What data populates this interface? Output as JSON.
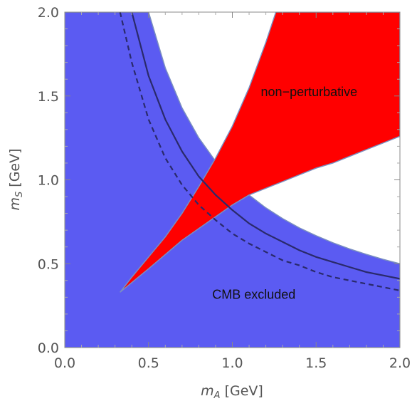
{
  "chart_data": {
    "type": "area",
    "xlabel": {
      "symbol": "m",
      "subscript": "A",
      "unit": " [GeV]"
    },
    "ylabel": {
      "symbol": "m",
      "subscript": "S",
      "unit": " [GeV]"
    },
    "xlim": [
      0,
      2
    ],
    "ylim": [
      0,
      2
    ],
    "xticks": [
      "0.0",
      "0.5",
      "1.0",
      "1.5",
      "2.0"
    ],
    "yticks": [
      "0.0",
      "0.5",
      "1.0",
      "1.5",
      "2.0"
    ],
    "grid": false,
    "regions": [
      {
        "label": "CMB excluded",
        "color": "#5b5bf2",
        "description_points": "band between x=0 and y=1/x (clipped), region mA*mS<=1 excluding y>2/x... outline",
        "boundary": [
          [
            0,
            0
          ],
          [
            0,
            2
          ],
          [
            0.5,
            2
          ],
          [
            0.6,
            1.667
          ],
          [
            0.7,
            1.429
          ],
          [
            0.8,
            1.25
          ],
          [
            0.9,
            1.111
          ],
          [
            1.0,
            1.0
          ],
          [
            1.1,
            0.909
          ],
          [
            1.2,
            0.833
          ],
          [
            1.3,
            0.769
          ],
          [
            1.4,
            0.714
          ],
          [
            1.5,
            0.667
          ],
          [
            1.6,
            0.625
          ],
          [
            1.7,
            0.588
          ],
          [
            1.8,
            0.556
          ],
          [
            1.9,
            0.526
          ],
          [
            2.0,
            0.5
          ],
          [
            2.0,
            0
          ],
          [
            0,
            0
          ]
        ]
      },
      {
        "label": "non−perturbative",
        "color": "#ff0000",
        "boundary": [
          [
            0.33,
            0.33
          ],
          [
            0.5,
            0.47
          ],
          [
            0.7,
            0.64
          ],
          [
            0.9,
            0.78
          ],
          [
            1.0,
            0.85
          ],
          [
            1.1,
            0.91
          ],
          [
            1.2,
            0.95
          ],
          [
            1.3,
            0.99
          ],
          [
            1.4,
            1.03
          ],
          [
            1.5,
            1.07
          ],
          [
            1.6,
            1.1
          ],
          [
            1.7,
            1.14
          ],
          [
            1.8,
            1.18
          ],
          [
            1.9,
            1.22
          ],
          [
            2.0,
            1.26
          ],
          [
            2.0,
            2.0
          ],
          [
            1.26,
            2.0
          ],
          [
            1.2,
            1.82
          ],
          [
            1.1,
            1.55
          ],
          [
            1.0,
            1.32
          ],
          [
            0.9,
            1.13
          ],
          [
            0.8,
            0.96
          ],
          [
            0.7,
            0.8
          ],
          [
            0.6,
            0.66
          ],
          [
            0.5,
            0.54
          ],
          [
            0.4,
            0.42
          ],
          [
            0.33,
            0.33
          ]
        ]
      }
    ],
    "series": [
      {
        "style": "solid",
        "color": "#2a2a6b",
        "x": [
          0.4,
          0.5,
          0.6,
          0.7,
          0.8,
          0.9,
          1.0,
          1.1,
          1.2,
          1.3,
          1.4,
          1.5,
          1.6,
          1.7,
          1.8,
          1.9,
          2.0
        ],
        "y": [
          2.0,
          1.62,
          1.36,
          1.17,
          1.02,
          0.91,
          0.82,
          0.74,
          0.68,
          0.63,
          0.58,
          0.54,
          0.51,
          0.48,
          0.45,
          0.43,
          0.41
        ]
      },
      {
        "style": "dashed",
        "color": "#2a2a6b",
        "x": [
          0.33,
          0.4,
          0.5,
          0.6,
          0.7,
          0.8,
          0.9,
          1.0,
          1.1,
          1.2,
          1.3,
          1.4,
          1.5,
          1.6,
          1.7,
          1.8,
          1.9,
          2.0
        ],
        "y": [
          2.0,
          1.7,
          1.36,
          1.13,
          0.97,
          0.85,
          0.76,
          0.68,
          0.62,
          0.57,
          0.52,
          0.49,
          0.45,
          0.42,
          0.4,
          0.38,
          0.36,
          0.34
        ]
      }
    ],
    "region_labels": [
      {
        "text": "non−perturbative",
        "x": 1.17,
        "y": 1.5
      },
      {
        "text": "CMB excluded",
        "x": 0.88,
        "y": 0.29
      }
    ]
  }
}
